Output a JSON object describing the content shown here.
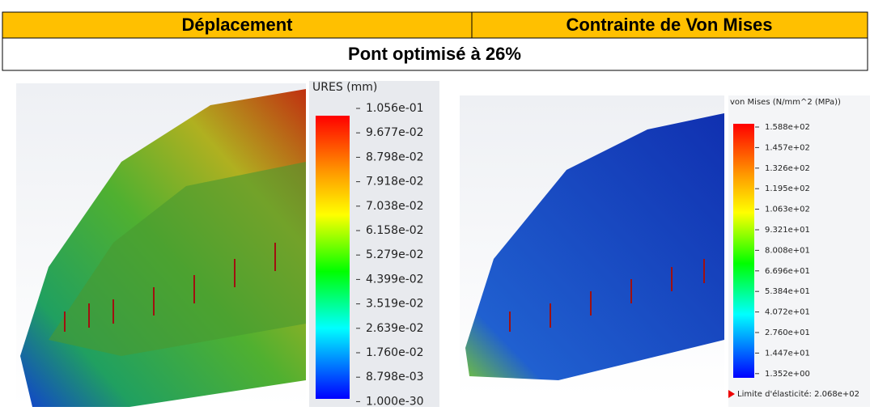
{
  "table": {
    "headers": [
      "Déplacement",
      "Contrainte de Von Mises"
    ],
    "subtitle": "Pont optimisé à 26%"
  },
  "left_legend": {
    "title": "URES (mm)",
    "labels": [
      "1.056e-01",
      "9.677e-02",
      "8.798e-02",
      "7.918e-02",
      "7.038e-02",
      "6.158e-02",
      "5.279e-02",
      "4.399e-02",
      "3.519e-02",
      "2.639e-02",
      "1.760e-02",
      "8.798e-03",
      "1.000e-30"
    ]
  },
  "right_legend": {
    "title": "von Mises (N/mm^2 (MPa))",
    "labels": [
      "1.588e+02",
      "1.457e+02",
      "1.326e+02",
      "1.195e+02",
      "1.063e+02",
      "9.321e+01",
      "8.008e+01",
      "6.696e+01",
      "5.384e+01",
      "4.072e+01",
      "2.760e+01",
      "1.447e+01",
      "1.352e+00"
    ],
    "footer": "Limite d'élasticité: 2.068e+02"
  }
}
